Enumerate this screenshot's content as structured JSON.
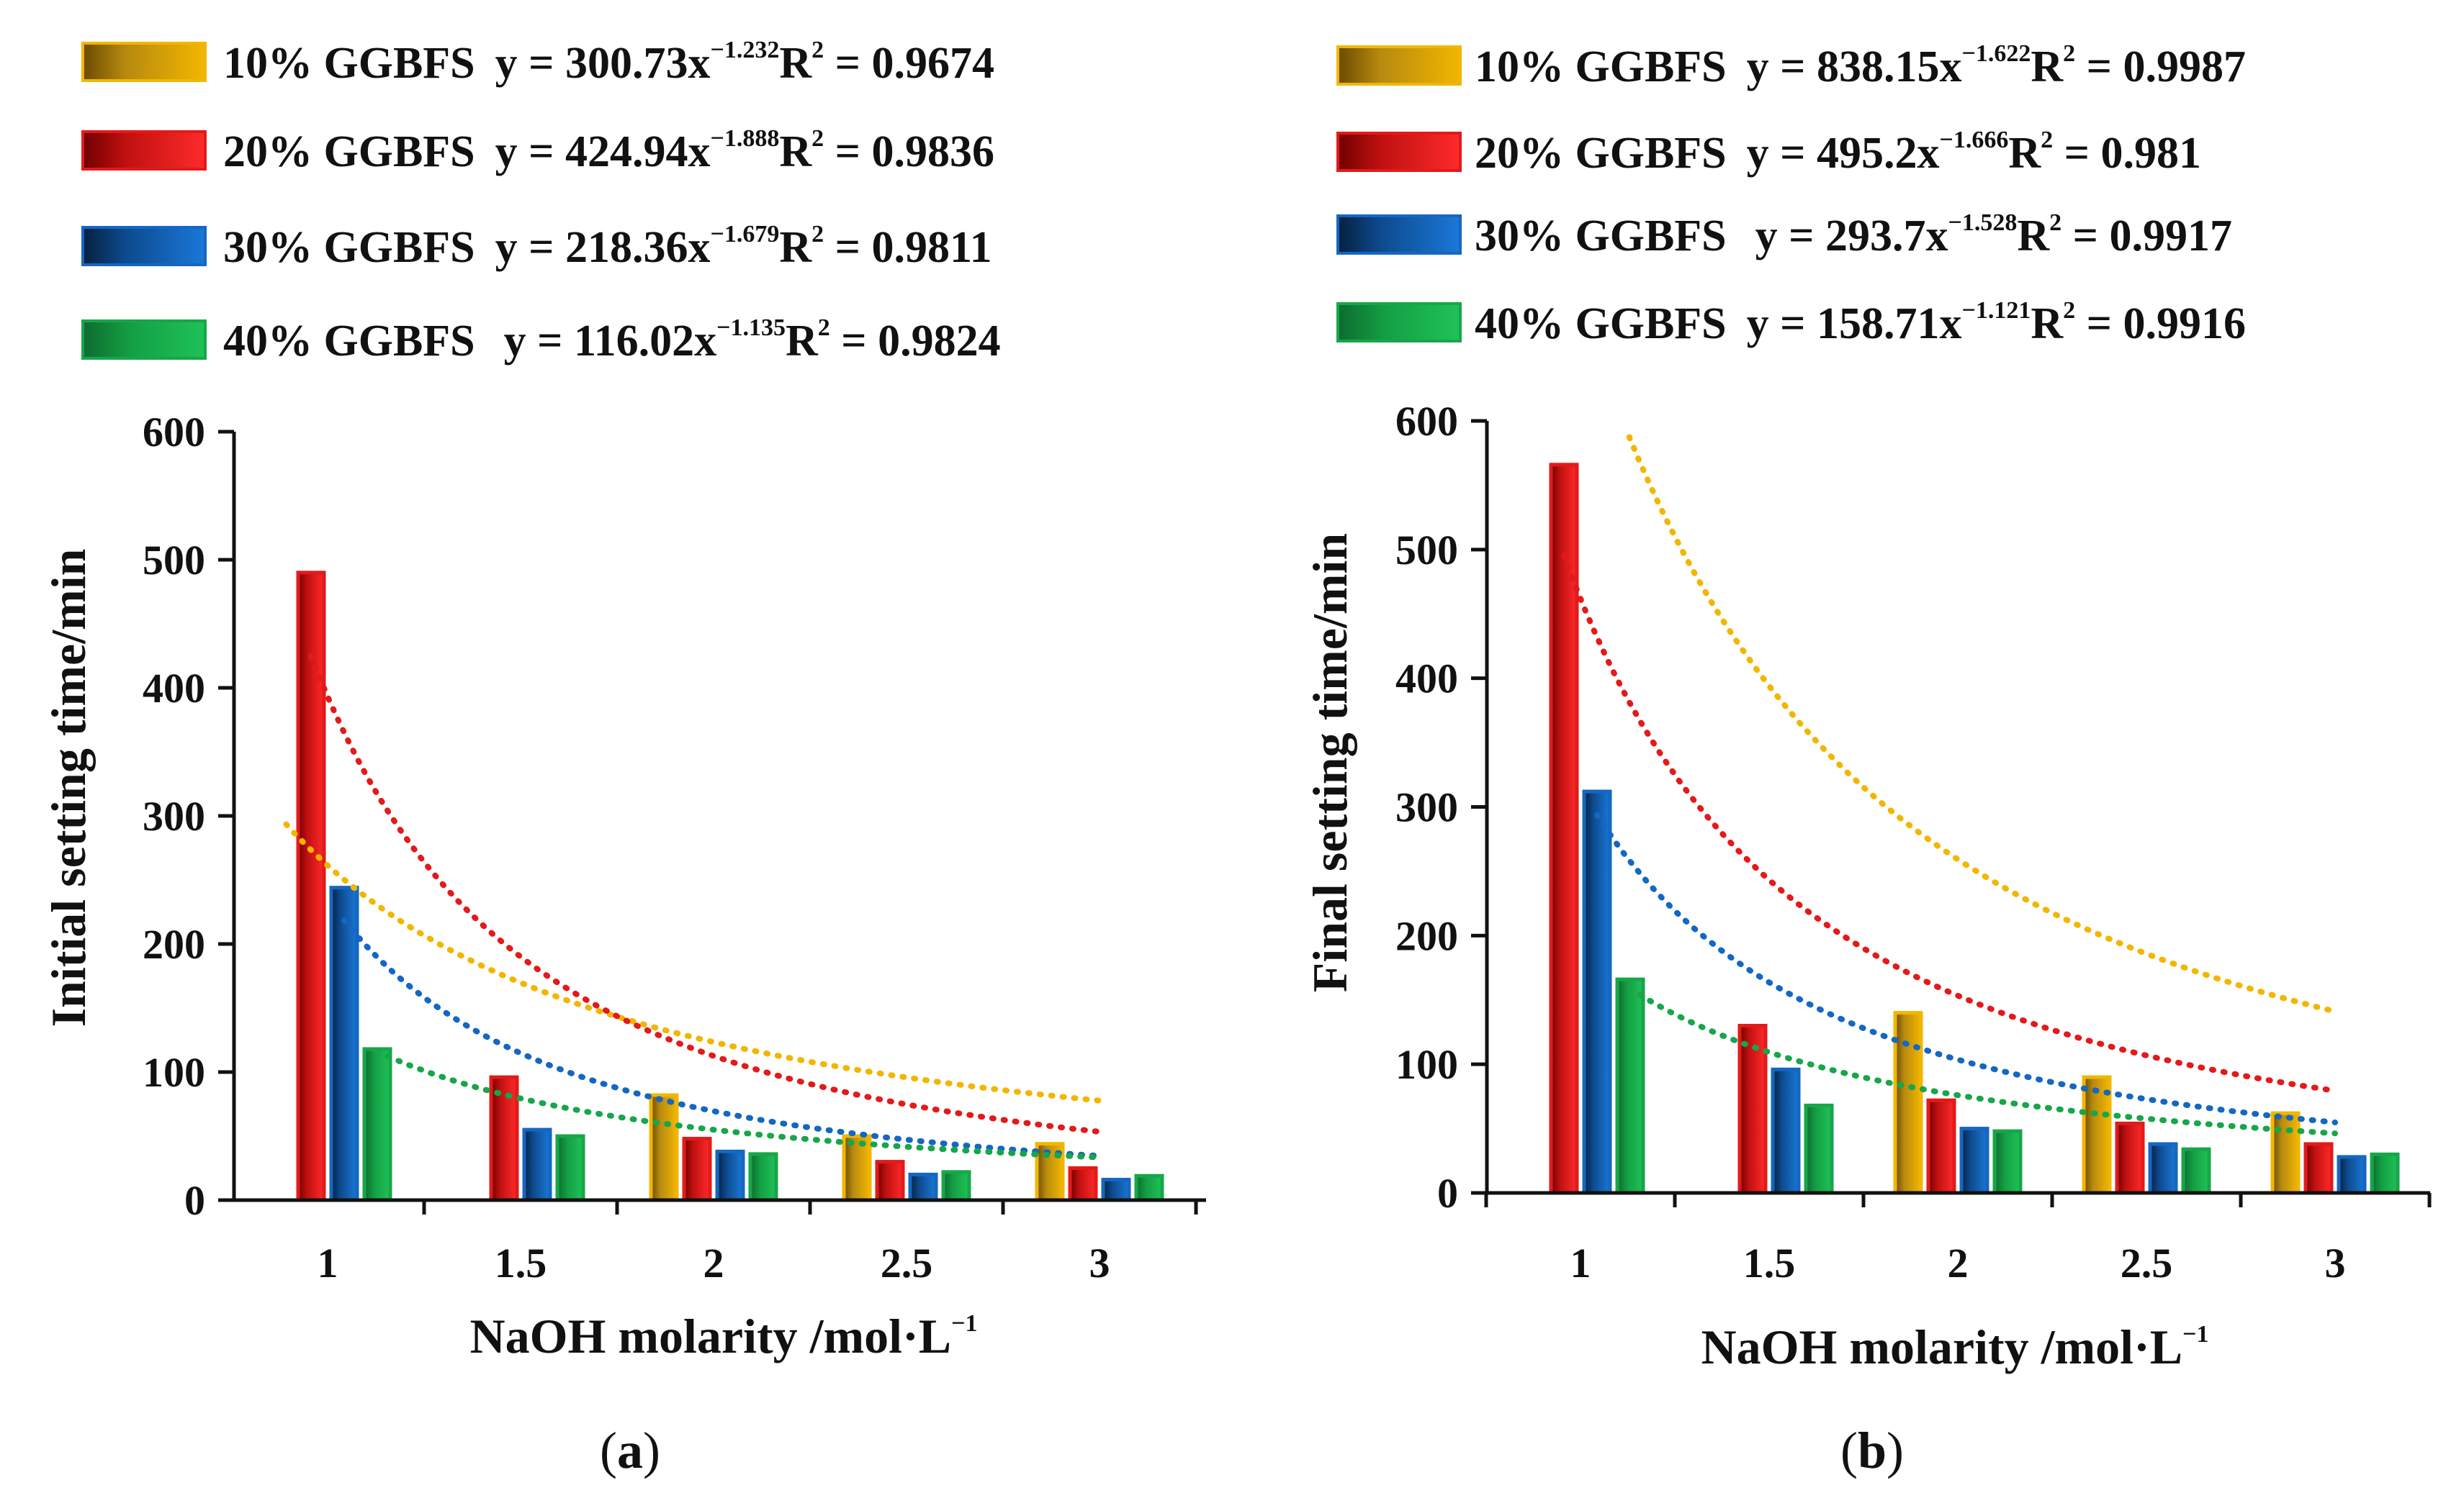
{
  "figure": {
    "caption_a": "a",
    "caption_b": "b"
  },
  "colors": {
    "gold": "#f2b600",
    "red": "#e31a1a",
    "blue": "#1467c2",
    "green": "#17a64a"
  },
  "chart_data": [
    {
      "type": "bar",
      "panel": "(a)",
      "xlabel": "NaOH molarity /mol·L",
      "xlabel_sup": "−1",
      "ylabel": "Initial setting time/min",
      "ylim": [
        0,
        600
      ],
      "yticks": [
        0,
        100,
        200,
        300,
        400,
        500,
        600
      ],
      "categories": [
        "1",
        "1.5",
        "2",
        "2.5",
        "3"
      ],
      "x": [
        1,
        1.5,
        2,
        2.5,
        3
      ],
      "series": [
        {
          "name": "10% GGBFS",
          "color": "#f2b600",
          "values": [
            null,
            null,
            82,
            50,
            44
          ],
          "fit": {
            "a": 300.73,
            "b": -1.232
          },
          "eq_prefix": "y = 300.73x",
          "eq_exp": "−1.232",
          "r2_label": "R",
          "r2_value": " = 0.9674"
        },
        {
          "name": "20% GGBFS",
          "color": "#e31a1a",
          "values": [
            490,
            96,
            48,
            30,
            25
          ],
          "fit": {
            "a": 424.94,
            "b": -1.888
          },
          "eq_prefix": "y = 424.94x",
          "eq_exp": "−1.888",
          "r2_label": "R",
          "r2_value": " = 0.9836"
        },
        {
          "name": "30% GGBFS",
          "color": "#1467c2",
          "values": [
            244,
            55,
            38,
            20,
            16
          ],
          "fit": {
            "a": 218.36,
            "b": -1.679
          },
          "eq_prefix": "y = 218.36x",
          "eq_exp": "−1.679",
          "r2_label": "R",
          "r2_value": " = 0.9811"
        },
        {
          "name": "40% GGBFS",
          "color": "#17a64a",
          "values": [
            118,
            50,
            36,
            22,
            19
          ],
          "fit": {
            "a": 116.02,
            "b": -1.135
          },
          "eq_prefix": "y = 116.02x",
          "eq_exp": "−1.135",
          "r2_label": "R",
          "r2_value": " = 0.9824"
        }
      ],
      "trendline_style": "dotted"
    },
    {
      "type": "bar",
      "panel": "(b)",
      "xlabel": "NaOH molarity /mol·L",
      "xlabel_sup": "−1",
      "ylabel": "Final setting time/min",
      "ylim": [
        0,
        600
      ],
      "yticks": [
        0,
        100,
        200,
        300,
        400,
        500,
        600
      ],
      "categories": [
        "1",
        "1.5",
        "2",
        "2.5",
        "3"
      ],
      "x": [
        1,
        1.5,
        2,
        2.5,
        3
      ],
      "series": [
        {
          "name": "10% GGBFS",
          "color": "#f2b600",
          "values": [
            null,
            null,
            140,
            90,
            62
          ],
          "fit": {
            "a": 838.15,
            "b": -1.622
          },
          "eq_prefix": "y = 838.15x",
          "eq_exp": "−1.622",
          "r2_label": "R",
          "r2_value": " = 0.9987"
        },
        {
          "name": "20% GGBFS",
          "color": "#e31a1a",
          "values": [
            566,
            130,
            72,
            54,
            38
          ],
          "fit": {
            "a": 495.2,
            "b": -1.666
          },
          "eq_prefix": "y = 495.2x",
          "eq_exp": "−1.666",
          "r2_label": "R",
          "r2_value": " = 0.981"
        },
        {
          "name": "30% GGBFS",
          "color": "#1467c2",
          "values": [
            312,
            96,
            50,
            38,
            28
          ],
          "fit": {
            "a": 293.7,
            "b": -1.528
          },
          "eq_prefix": "y = 293.7x",
          "eq_exp": "−1.528",
          "r2_label": "R",
          "r2_value": " = 0.9917"
        },
        {
          "name": "40% GGBFS",
          "color": "#17a64a",
          "values": [
            166,
            68,
            48,
            34,
            30
          ],
          "fit": {
            "a": 158.71,
            "b": -1.121
          },
          "eq_prefix": "y = 158.71x",
          "eq_exp": "−1.121",
          "r2_label": "R",
          "r2_value": " = 0.9916"
        }
      ],
      "trendline_style": "dotted"
    }
  ]
}
